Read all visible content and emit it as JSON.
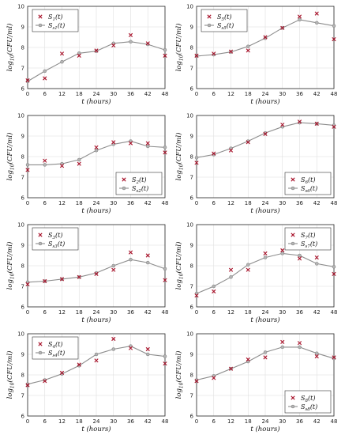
{
  "colors": {
    "observed": "#a8122a",
    "model_line": "#8c8c8c",
    "model_marker": "#b5b5b5",
    "grid": "#dedede"
  },
  "chart_data": [
    {
      "type": "line",
      "x": [
        0,
        6,
        12,
        18,
        24,
        30,
        36,
        42,
        48
      ],
      "xlabel": "t (hours)",
      "ylabel": "log10(CFU/ml)",
      "xlim": [
        0,
        48
      ],
      "ylim": [
        6,
        10
      ],
      "xticks": [
        "0",
        "6",
        "12",
        "18",
        "24",
        "30",
        "36",
        "42",
        "48"
      ],
      "yticks": [
        "6",
        "7",
        "8",
        "9",
        "10"
      ],
      "legend": {
        "placement": "top-left",
        "observed_label": "S1(t)",
        "model_label": "Ss1(t)",
        "observed_main": "S",
        "observed_sub": "1",
        "observed_suffix": "(t)",
        "model_main": "S",
        "model_sub": "s1",
        "model_suffix": "(t)"
      },
      "series": [
        {
          "name": "S1(t)",
          "marker": "x",
          "values": [
            6.4,
            6.5,
            7.7,
            7.6,
            7.85,
            8.1,
            8.6,
            8.2,
            7.6
          ]
        },
        {
          "name": "Ss1(t)",
          "marker": "o-line",
          "values": [
            6.35,
            6.85,
            7.3,
            7.72,
            7.82,
            8.2,
            8.28,
            8.15,
            7.88
          ]
        }
      ]
    },
    {
      "type": "line",
      "x": [
        0,
        6,
        12,
        18,
        24,
        30,
        36,
        42,
        48
      ],
      "xlabel": "t (hours)",
      "ylabel": "log10(CFU/ml)",
      "xlim": [
        0,
        48
      ],
      "ylim": [
        6,
        10
      ],
      "xticks": [
        "0",
        "6",
        "12",
        "18",
        "24",
        "30",
        "36",
        "42",
        "48"
      ],
      "yticks": [
        "6",
        "7",
        "8",
        "9",
        "10"
      ],
      "legend": {
        "placement": "top-left",
        "observed_label": "S5(t)",
        "model_label": "Ss5(t)",
        "observed_main": "S",
        "observed_sub": "5",
        "observed_suffix": "(t)",
        "model_main": "S",
        "model_sub": "s5",
        "model_suffix": "(t)"
      },
      "series": [
        {
          "name": "S5(t)",
          "marker": "x",
          "values": [
            7.6,
            7.7,
            7.8,
            7.85,
            8.5,
            8.95,
            9.5,
            9.65,
            8.4
          ]
        },
        {
          "name": "Ss5(t)",
          "marker": "o-line",
          "values": [
            7.58,
            7.65,
            7.78,
            8.05,
            8.45,
            8.95,
            9.35,
            9.2,
            9.05
          ]
        }
      ]
    },
    {
      "type": "line",
      "x": [
        0,
        6,
        12,
        18,
        24,
        30,
        36,
        42,
        48
      ],
      "xlabel": "t (hours)",
      "ylabel": "log10(CFU/ml)",
      "xlim": [
        0,
        48
      ],
      "ylim": [
        6,
        10
      ],
      "xticks": [
        "0",
        "6",
        "12",
        "18",
        "24",
        "30",
        "36",
        "42",
        "48"
      ],
      "yticks": [
        "6",
        "7",
        "8",
        "9",
        "10"
      ],
      "legend": {
        "placement": "bottom-right",
        "observed_label": "S2(t)",
        "model_label": "Ss2(t)",
        "observed_main": "S",
        "observed_sub": "2",
        "observed_suffix": "(t)",
        "model_main": "S",
        "model_sub": "s2",
        "model_suffix": "(t)"
      },
      "series": [
        {
          "name": "S2(t)",
          "marker": "x",
          "values": [
            7.35,
            7.8,
            7.55,
            7.65,
            8.45,
            8.7,
            8.65,
            8.65,
            8.2
          ]
        },
        {
          "name": "Ss2(t)",
          "marker": "o-line",
          "values": [
            7.6,
            7.6,
            7.65,
            7.85,
            8.3,
            8.6,
            8.75,
            8.5,
            8.45
          ]
        }
      ]
    },
    {
      "type": "line",
      "x": [
        0,
        6,
        12,
        18,
        24,
        30,
        36,
        42,
        48
      ],
      "xlabel": "t (hours)",
      "ylabel": "log10(CFU/ml)",
      "xlim": [
        0,
        48
      ],
      "ylim": [
        6,
        10
      ],
      "xticks": [
        "0",
        "6",
        "12",
        "18",
        "24",
        "30",
        "36",
        "42",
        "48"
      ],
      "yticks": [
        "6",
        "7",
        "8",
        "9",
        "10"
      ],
      "legend": {
        "placement": "bottom-right",
        "observed_label": "S6(t)",
        "model_label": "Ss6(t)",
        "observed_main": "S",
        "observed_sub": "6",
        "observed_suffix": "(t)",
        "model_main": "S",
        "model_sub": "s6",
        "model_suffix": "(t)"
      },
      "series": [
        {
          "name": "S6(t)",
          "marker": "x",
          "values": [
            7.7,
            8.15,
            8.3,
            8.7,
            9.1,
            9.55,
            9.7,
            9.6,
            9.45
          ]
        },
        {
          "name": "Ss6(t)",
          "marker": "o-line",
          "values": [
            7.95,
            8.1,
            8.4,
            8.75,
            9.15,
            9.45,
            9.65,
            9.6,
            9.52
          ]
        }
      ]
    },
    {
      "type": "line",
      "x": [
        0,
        6,
        12,
        18,
        24,
        30,
        36,
        42,
        48
      ],
      "xlabel": "t (hours)",
      "ylabel": "log10(CFU/ml)",
      "xlim": [
        0,
        48
      ],
      "ylim": [
        6,
        10
      ],
      "xticks": [
        "0",
        "6",
        "12",
        "18",
        "24",
        "30",
        "36",
        "42",
        "48"
      ],
      "yticks": [
        "6",
        "7",
        "8",
        "9",
        "10"
      ],
      "legend": {
        "placement": "top-left",
        "observed_label": "S3(t)",
        "model_label": "Ss3(t)",
        "observed_main": "S",
        "observed_sub": "3",
        "observed_suffix": "(t)",
        "model_main": "S",
        "model_sub": "s3",
        "model_suffix": "(t)"
      },
      "series": [
        {
          "name": "S3(t)",
          "marker": "x",
          "values": [
            7.1,
            7.25,
            7.35,
            7.45,
            7.6,
            7.8,
            8.65,
            8.5,
            7.3
          ]
        },
        {
          "name": "Ss3(t)",
          "marker": "o-line",
          "values": [
            7.2,
            7.25,
            7.35,
            7.45,
            7.65,
            8.0,
            8.3,
            8.15,
            7.85
          ]
        }
      ]
    },
    {
      "type": "line",
      "x": [
        0,
        6,
        12,
        18,
        24,
        30,
        36,
        42,
        48
      ],
      "xlabel": "t (hours)",
      "ylabel": "log10(CFU/ml)",
      "xlim": [
        0,
        48
      ],
      "ylim": [
        6,
        10
      ],
      "xticks": [
        "0",
        "6",
        "12",
        "18",
        "24",
        "30",
        "36",
        "42",
        "48"
      ],
      "yticks": [
        "6",
        "7",
        "8",
        "9",
        "10"
      ],
      "legend": {
        "placement": "top-right",
        "observed_label": "S7(t)",
        "model_label": "Ss7(t)",
        "observed_main": "S",
        "observed_sub": "7",
        "observed_suffix": "(t)",
        "model_main": "S",
        "model_sub": "s7",
        "model_suffix": "(t)"
      },
      "series": [
        {
          "name": "S7(t)",
          "marker": "x",
          "values": [
            6.55,
            6.75,
            7.8,
            7.8,
            8.6,
            8.75,
            8.35,
            8.4,
            7.6
          ]
        },
        {
          "name": "Ss7(t)",
          "marker": "o-line",
          "values": [
            6.65,
            7.0,
            7.45,
            8.05,
            8.4,
            8.6,
            8.5,
            8.1,
            7.95
          ]
        }
      ]
    },
    {
      "type": "line",
      "x": [
        0,
        6,
        12,
        18,
        24,
        30,
        36,
        42,
        48
      ],
      "xlabel": "t (hours)",
      "ylabel": "log10(CFU/ml)",
      "xlim": [
        0,
        48
      ],
      "ylim": [
        6,
        10
      ],
      "xticks": [
        "0",
        "6",
        "12",
        "18",
        "24",
        "30",
        "36",
        "42",
        "48"
      ],
      "yticks": [
        "6",
        "7",
        "8",
        "9",
        "10"
      ],
      "legend": {
        "placement": "top-left",
        "observed_label": "S4(t)",
        "model_label": "Ss4(t)",
        "observed_main": "S",
        "observed_sub": "4",
        "observed_suffix": "(t)",
        "model_main": "S",
        "model_sub": "s4",
        "model_suffix": "(t)"
      },
      "series": [
        {
          "name": "S4(t)",
          "marker": "x",
          "values": [
            7.5,
            7.7,
            8.1,
            8.5,
            8.7,
            9.75,
            9.3,
            9.25,
            8.55
          ]
        },
        {
          "name": "Ss4(t)",
          "marker": "o-line",
          "values": [
            7.55,
            7.75,
            8.05,
            8.45,
            9.0,
            9.25,
            9.4,
            9.0,
            8.9
          ]
        }
      ]
    },
    {
      "type": "line",
      "x": [
        0,
        6,
        12,
        18,
        24,
        30,
        36,
        42,
        48
      ],
      "xlabel": "t (hours)",
      "ylabel": "log10(CFU/ml)",
      "xlim": [
        0,
        48
      ],
      "ylim": [
        6,
        10
      ],
      "xticks": [
        "0",
        "6",
        "12",
        "18",
        "24",
        "30",
        "36",
        "42",
        "48"
      ],
      "yticks": [
        "6",
        "7",
        "8",
        "9",
        "10"
      ],
      "legend": {
        "placement": "bottom-right",
        "observed_label": "S8(t)",
        "model_label": "Ss8(t)",
        "observed_main": "S",
        "observed_sub": "8",
        "observed_suffix": "(t)",
        "model_main": "S",
        "model_sub": "s8",
        "model_suffix": "(t)"
      },
      "series": [
        {
          "name": "S8(t)",
          "marker": "x",
          "values": [
            7.7,
            7.85,
            8.3,
            8.75,
            8.85,
            9.6,
            9.55,
            8.9,
            8.85
          ]
        },
        {
          "name": "Ss8(t)",
          "marker": "o-line",
          "values": [
            7.75,
            7.95,
            8.3,
            8.65,
            9.1,
            9.35,
            9.35,
            9.05,
            8.8
          ]
        }
      ]
    }
  ]
}
